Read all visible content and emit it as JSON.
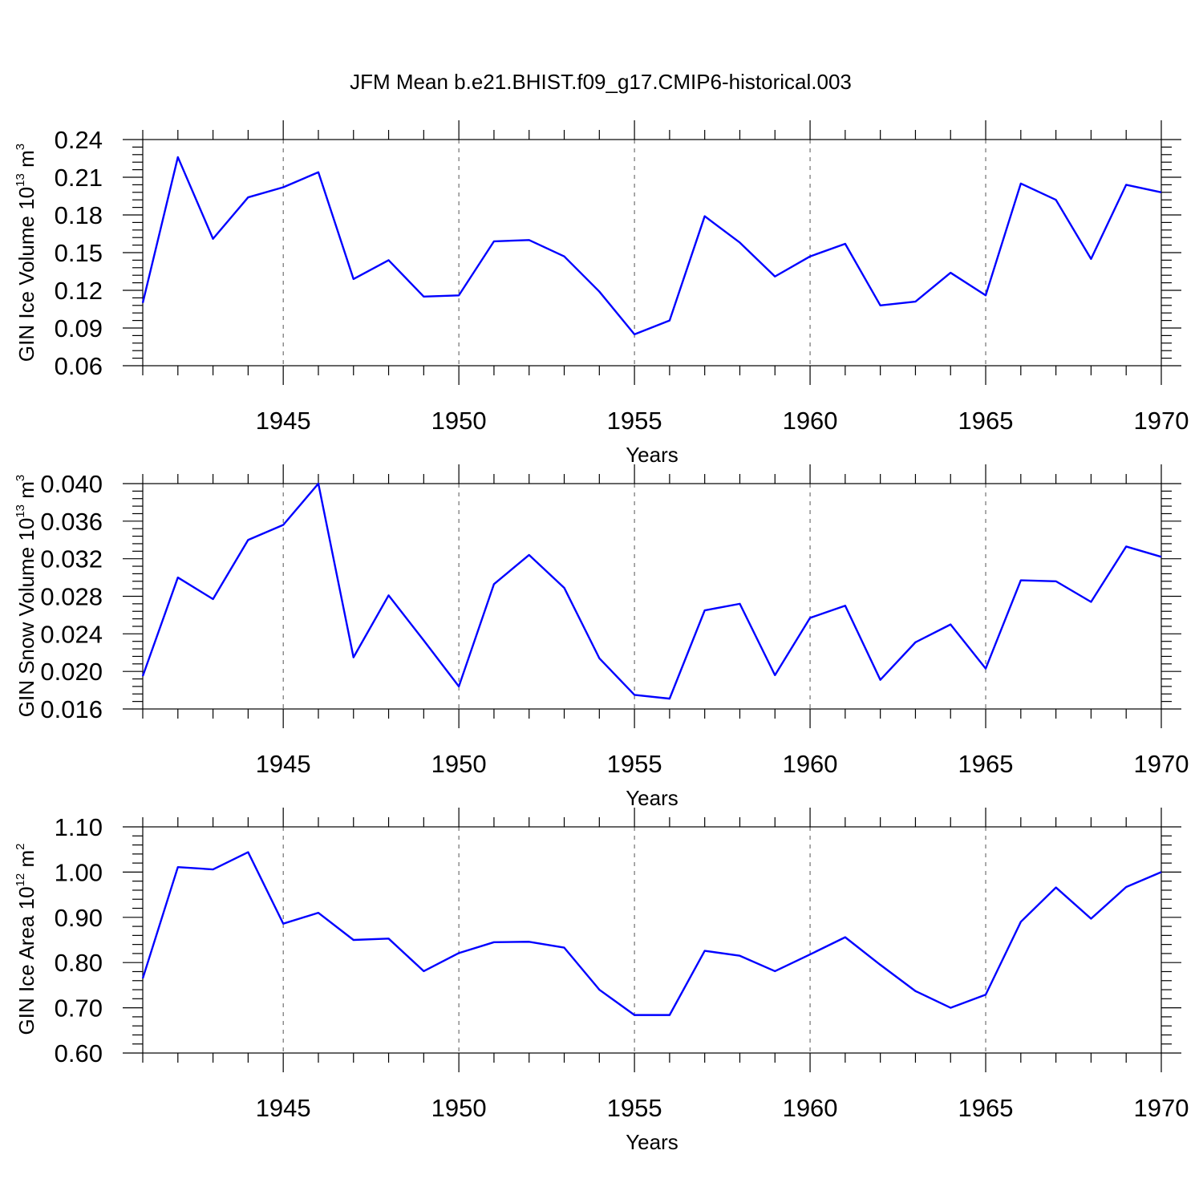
{
  "title": "JFM Mean b.e21.BHIST.f09_g17.CMIP6-historical.003",
  "chart_data": [
    {
      "type": "line",
      "xlabel": "Years",
      "ylabel": {
        "base": "GIN Ice Volume 10",
        "exp": "13",
        "unit": " m",
        "unit_exp": "3"
      },
      "xlim": [
        1941,
        1970
      ],
      "ylim": [
        0.06,
        0.24
      ],
      "yticks": [
        "0.06",
        "0.09",
        "0.12",
        "0.15",
        "0.18",
        "0.21",
        "0.24"
      ],
      "xticks": [
        "1945",
        "1950",
        "1955",
        "1960",
        "1965",
        "1970"
      ],
      "grid": "vertical dashed at labeled years",
      "color": "#0000ff",
      "x": [
        1941,
        1942,
        1943,
        1944,
        1945,
        1946,
        1947,
        1948,
        1949,
        1950,
        1951,
        1952,
        1953,
        1954,
        1955,
        1956,
        1957,
        1958,
        1959,
        1960,
        1961,
        1962,
        1963,
        1964,
        1965,
        1966,
        1967,
        1968,
        1969,
        1970
      ],
      "values": [
        0.11,
        0.226,
        0.161,
        0.194,
        0.202,
        0.214,
        0.129,
        0.144,
        0.115,
        0.116,
        0.159,
        0.16,
        0.147,
        0.119,
        0.085,
        0.096,
        0.179,
        0.158,
        0.131,
        0.147,
        0.157,
        0.108,
        0.111,
        0.134,
        0.116,
        0.205,
        0.192,
        0.145,
        0.204,
        0.198
      ]
    },
    {
      "type": "line",
      "xlabel": "Years",
      "ylabel": {
        "base": "GIN Snow Volume 10",
        "exp": "13",
        "unit": " m",
        "unit_exp": "3"
      },
      "xlim": [
        1941,
        1970
      ],
      "ylim": [
        0.016,
        0.04
      ],
      "yticks": [
        "0.016",
        "0.020",
        "0.024",
        "0.028",
        "0.032",
        "0.036",
        "0.040"
      ],
      "xticks": [
        "1945",
        "1950",
        "1955",
        "1960",
        "1965",
        "1970"
      ],
      "grid": "vertical dashed at labeled years",
      "color": "#0000ff",
      "x": [
        1941,
        1942,
        1943,
        1944,
        1945,
        1946,
        1947,
        1948,
        1949,
        1950,
        1951,
        1952,
        1953,
        1954,
        1955,
        1956,
        1957,
        1958,
        1959,
        1960,
        1961,
        1962,
        1963,
        1964,
        1965,
        1966,
        1967,
        1968,
        1969,
        1970
      ],
      "values": [
        0.0195,
        0.03,
        0.0277,
        0.034,
        0.0356,
        0.04,
        0.0215,
        0.0281,
        0.0233,
        0.0184,
        0.0293,
        0.0324,
        0.0289,
        0.0214,
        0.0175,
        0.0171,
        0.0265,
        0.0272,
        0.0196,
        0.0257,
        0.027,
        0.0191,
        0.0231,
        0.025,
        0.0203,
        0.0297,
        0.0296,
        0.0274,
        0.0333,
        0.0322
      ]
    },
    {
      "type": "line",
      "xlabel": "Years",
      "ylabel": {
        "base": "GIN Ice Area 10",
        "exp": "12",
        "unit": " m",
        "unit_exp": "2"
      },
      "xlim": [
        1941,
        1970
      ],
      "ylim": [
        0.6,
        1.1
      ],
      "yticks": [
        "0.60",
        "0.70",
        "0.80",
        "0.90",
        "1.00",
        "1.10"
      ],
      "xticks": [
        "1945",
        "1950",
        "1955",
        "1960",
        "1965",
        "1970"
      ],
      "grid": "vertical dashed at labeled years",
      "color": "#0000ff",
      "x": [
        1941,
        1942,
        1943,
        1944,
        1945,
        1946,
        1947,
        1948,
        1949,
        1950,
        1951,
        1952,
        1953,
        1954,
        1955,
        1956,
        1957,
        1958,
        1959,
        1960,
        1961,
        1962,
        1963,
        1964,
        1965,
        1966,
        1967,
        1968,
        1969,
        1970
      ],
      "values": [
        0.765,
        1.011,
        1.006,
        1.044,
        0.886,
        0.91,
        0.85,
        0.853,
        0.781,
        0.821,
        0.845,
        0.846,
        0.833,
        0.74,
        0.684,
        0.684,
        0.826,
        0.815,
        0.781,
        0.818,
        0.856,
        0.795,
        0.737,
        0.7,
        0.729,
        0.89,
        0.966,
        0.897,
        0.967,
        1.0
      ]
    }
  ]
}
